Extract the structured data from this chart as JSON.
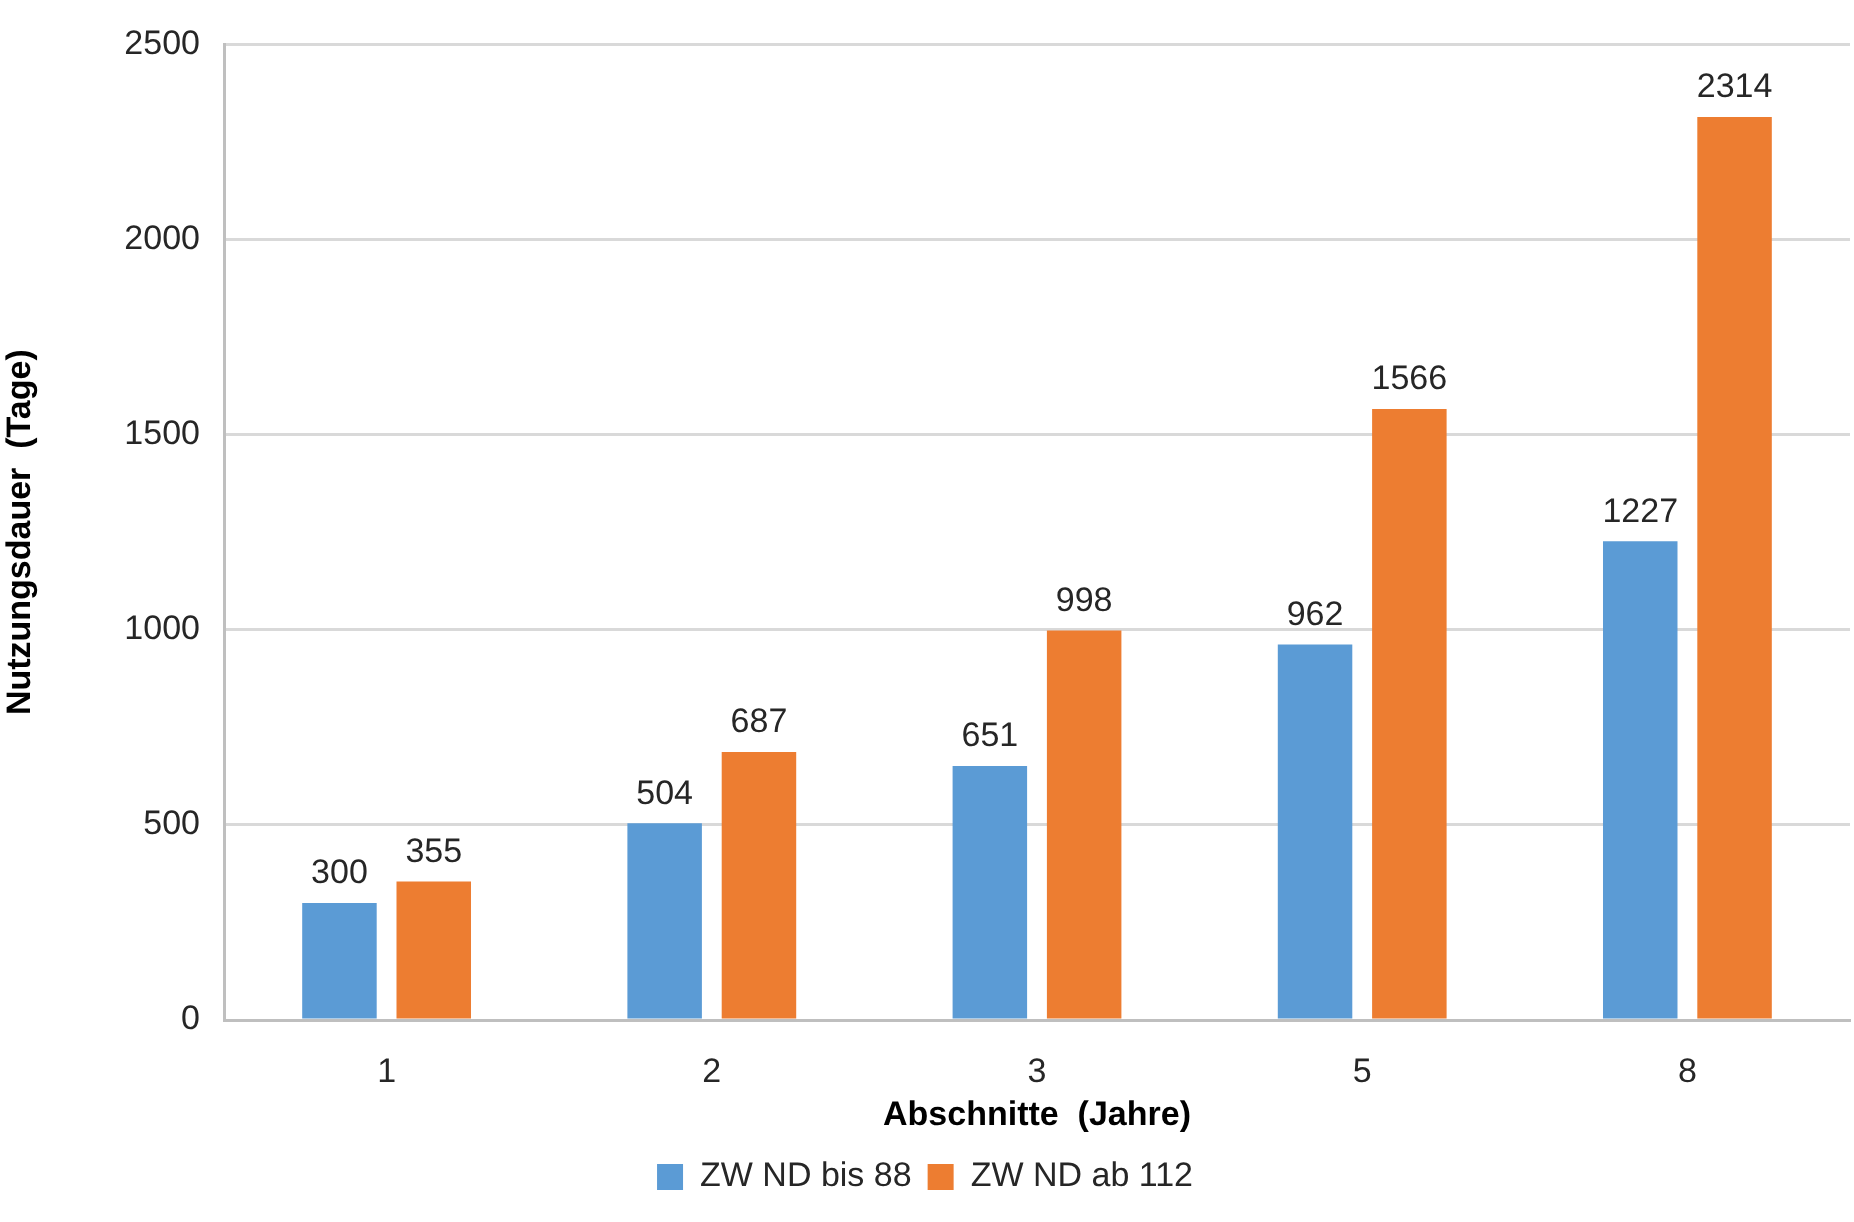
{
  "chart_data": {
    "type": "bar",
    "xlabel": "Abschnitte  (Jahre)",
    "ylabel": "Nutzungsdauer  (Tage)",
    "categories": [
      "1",
      "2",
      "3",
      "5",
      "8"
    ],
    "series": [
      {
        "name": "ZW ND bis 88",
        "color": "#5b9bd5",
        "values": [
          300,
          504,
          651,
          962,
          1227
        ]
      },
      {
        "name": "ZW ND ab 112",
        "color": "#ed7d31",
        "values": [
          355,
          687,
          998,
          1566,
          2314
        ]
      }
    ],
    "ylim": [
      0,
      2500
    ],
    "yticks": [
      0,
      500,
      1000,
      1500,
      2000,
      2500
    ],
    "grid": "y",
    "legend": "bottom",
    "data_labels": true
  }
}
